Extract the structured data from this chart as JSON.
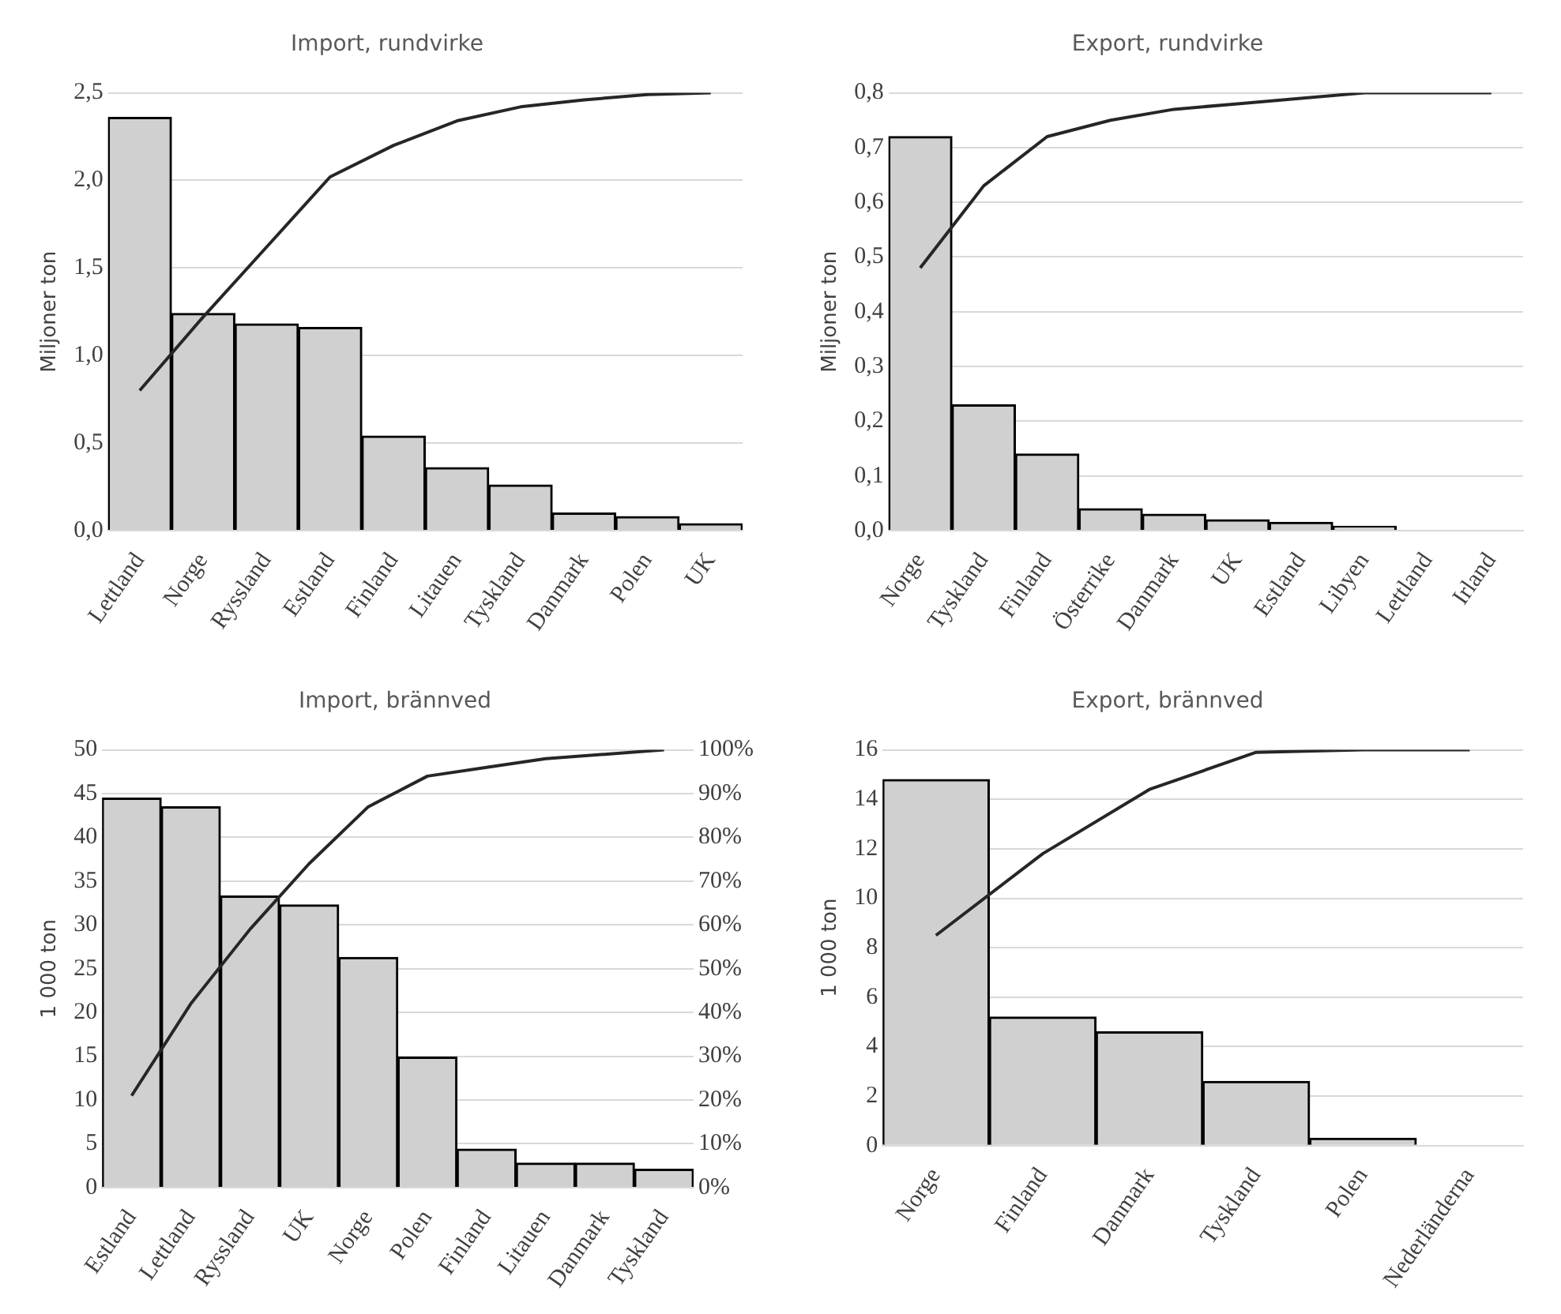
{
  "chart_data": [
    {
      "type": "bar",
      "title": "Import, rundvirke",
      "ylabel": "Miljoner ton",
      "categories": [
        "Lettland",
        "Norge",
        "Ryssland",
        "Estland",
        "Finland",
        "Litauen",
        "Tyskland",
        "Danmark",
        "Polen",
        "UK"
      ],
      "ylim": [
        0,
        2.5
      ],
      "yticks": [
        {
          "value": 0,
          "label": "0,0"
        },
        {
          "value": 0.5,
          "label": "0,5"
        },
        {
          "value": 1,
          "label": "1,0"
        },
        {
          "value": 1.5,
          "label": "1,5"
        },
        {
          "value": 2,
          "label": "2,0"
        },
        {
          "value": 2.5,
          "label": "2,5"
        }
      ],
      "grid": "y",
      "legend": false,
      "marker": "none",
      "series": [
        {
          "color": "#d0d0d0",
          "values": [
            2.36,
            1.24,
            1.18,
            1.16,
            0.54,
            0.36,
            0.26,
            0.1,
            0.08,
            0.04
          ]
        },
        {
          "type": "line",
          "color": "#262626",
          "values": [
            0.8,
            1.22,
            1.62,
            2.02,
            2.2,
            2.34,
            2.42,
            2.46,
            2.49,
            2.5
          ]
        }
      ]
    },
    {
      "type": "bar",
      "title": "Export, rundvirke",
      "ylabel": "Miljoner ton",
      "categories": [
        "Norge",
        "Tyskland",
        "Finland",
        "Österrike",
        "Danmark",
        "UK",
        "Estland",
        "Libyen",
        "Lettland",
        "Irland"
      ],
      "ylim": [
        0,
        0.8
      ],
      "yticks": [
        {
          "value": 0,
          "label": "0,0"
        },
        {
          "value": 0.1,
          "label": "0,1"
        },
        {
          "value": 0.2,
          "label": "0,2"
        },
        {
          "value": 0.3,
          "label": "0,3"
        },
        {
          "value": 0.4,
          "label": "0,4"
        },
        {
          "value": 0.5,
          "label": "0,5"
        },
        {
          "value": 0.6,
          "label": "0,6"
        },
        {
          "value": 0.7,
          "label": "0,7"
        },
        {
          "value": 0.8,
          "label": "0,8"
        }
      ],
      "grid": "y",
      "legend": false,
      "marker": "none",
      "series": [
        {
          "color": "#d0d0d0",
          "values": [
            0.72,
            0.23,
            0.14,
            0.04,
            0.03,
            0.02,
            0.015,
            0.008,
            0,
            0
          ]
        },
        {
          "type": "line",
          "color": "#262626",
          "values": [
            0.48,
            0.63,
            0.72,
            0.75,
            0.77,
            0.78,
            0.79,
            0.8,
            0.8,
            0.8
          ]
        }
      ]
    },
    {
      "type": "bar",
      "title": "Import, brännved",
      "ylabel": "1 000 ton",
      "categories": [
        "Estland",
        "Lettland",
        "Ryssland",
        "UK",
        "Norge",
        "Polen",
        "Finland",
        "Litauen",
        "Danmark",
        "Tyskland"
      ],
      "ylim": [
        0,
        50
      ],
      "yticks": [
        0,
        5,
        10,
        15,
        20,
        25,
        30,
        35,
        40,
        45,
        50
      ],
      "y2lim": [
        0,
        100
      ],
      "y2ticks": [
        {
          "value": 0,
          "label": "0%"
        },
        {
          "value": 10,
          "label": "10%"
        },
        {
          "value": 20,
          "label": "20%"
        },
        {
          "value": 30,
          "label": "30%"
        },
        {
          "value": 40,
          "label": "40%"
        },
        {
          "value": 50,
          "label": "50%"
        },
        {
          "value": 60,
          "label": "60%"
        },
        {
          "value": 70,
          "label": "70%"
        },
        {
          "value": 80,
          "label": "80%"
        },
        {
          "value": 90,
          "label": "90%"
        },
        {
          "value": 100,
          "label": "100%"
        }
      ],
      "grid": "y",
      "legend": false,
      "marker": "none",
      "series": [
        {
          "color": "#d0d0d0",
          "values": [
            44.5,
            43.5,
            33.3,
            32.3,
            26.3,
            14.9,
            4.4,
            2.8,
            2.8,
            2.1
          ]
        },
        {
          "type": "line",
          "color": "#262626",
          "axis": "y2",
          "values": [
            21,
            42,
            59,
            74,
            87,
            94,
            96,
            98,
            99,
            100
          ]
        }
      ]
    },
    {
      "type": "bar",
      "title": "Export, brännved",
      "ylabel": "1 000 ton",
      "categories": [
        "Norge",
        "Finland",
        "Danmark",
        "Tyskland",
        "Polen",
        "Nederländerna"
      ],
      "ylim": [
        0,
        16
      ],
      "yticks": [
        0,
        2,
        4,
        6,
        8,
        10,
        12,
        14,
        16
      ],
      "grid": "y",
      "legend": false,
      "marker": "none",
      "series": [
        {
          "color": "#d0d0d0",
          "values": [
            14.8,
            5.2,
            4.6,
            2.6,
            0.3,
            0
          ]
        },
        {
          "type": "line",
          "color": "#262626",
          "values": [
            8.5,
            11.8,
            14.4,
            15.9,
            16,
            16
          ]
        }
      ]
    }
  ]
}
